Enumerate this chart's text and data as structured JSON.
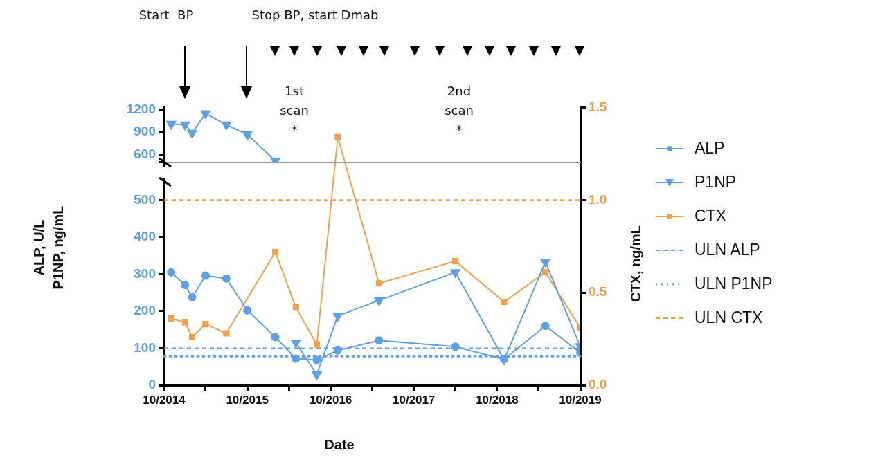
{
  "chart_data": [
    {
      "type": "line",
      "tick_labels": "y",
      "xlim": [
        "2014-10",
        "2019-10"
      ],
      "ylim": [
        500,
        1230
      ],
      "yticks": [
        {
          "value": 500,
          "label": null
        },
        600,
        900,
        1200
      ],
      "series": [
        {
          "color": "#5fa0e0",
          "marker": "triangle",
          "axis": "y",
          "x": [
            "2014-11",
            "2015-01",
            "2015-02",
            "2015-04",
            "2015-07",
            "2015-10",
            "2016-02"
          ],
          "values": [
            1010,
            1000,
            890,
            1150,
            1000,
            870,
            520
          ]
        }
      ]
    },
    {
      "type": "line",
      "xlabel": "Date",
      "ylabel": "ALP, U/L P1NP, ng/mL",
      "y2label": "CTX, ng/mL",
      "legend": "right",
      "xlim": [
        "2014-10",
        "2019-10"
      ],
      "xticks": [
        {
          "value": "2014-10",
          "label": "10/2014"
        },
        {
          "value": "2015-04",
          "label": null
        },
        {
          "value": "2015-10",
          "label": "10/2015"
        },
        {
          "value": "2016-04",
          "label": null
        },
        {
          "value": "2016-10",
          "label": "10/2016"
        },
        {
          "value": "2017-04",
          "label": null
        },
        {
          "value": "2017-10",
          "label": "10/2017"
        },
        {
          "value": "2018-04",
          "label": null
        },
        {
          "value": "2018-10",
          "label": "10/2018"
        },
        {
          "value": "2019-04",
          "label": null
        },
        {
          "value": "2019-10",
          "label": "10/2019"
        }
      ],
      "ylim": [
        0,
        750
      ],
      "yticks": [
        0,
        100,
        200,
        300,
        400,
        500
      ],
      "y2lim": [
        0,
        1.5
      ],
      "y2ticks": [
        {
          "value": 0,
          "label": "0.0"
        },
        {
          "value": 0.5,
          "label": "0.5"
        },
        {
          "value": 1,
          "label": "1.0"
        },
        {
          "value": 1.5,
          "label": "1.5"
        }
      ],
      "series": [
        {
          "name": "ALP",
          "color": "#5fa0e0",
          "marker": "circle",
          "axis": "y",
          "x": [
            "2014-11",
            "2015-01",
            "2015-02",
            "2015-04",
            "2015-07",
            "2015-10",
            "2016-02",
            "2016-05",
            "2016-08",
            "2016-11",
            "2017-05",
            "2018-04",
            "2018-11",
            "2019-05",
            "2019-10"
          ],
          "values": [
            305,
            271,
            237,
            296,
            288,
            202,
            130,
            72,
            68,
            94,
            121,
            104,
            70,
            160,
            88
          ]
        },
        {
          "name": "P1NP",
          "color": "#5fa0e0",
          "marker": "triangle",
          "axis": "y",
          "x": [
            "2016-05",
            "2016-08",
            "2016-11",
            "2017-05",
            "2018-04",
            "2018-11",
            "2019-05",
            "2019-10"
          ],
          "values": [
            115,
            29,
            187,
            229,
            305,
            69,
            333,
            105
          ]
        },
        {
          "name": "CTX",
          "color": "#f0a048",
          "marker": "square",
          "axis": "y2",
          "x": [
            "2014-11",
            "2015-01",
            "2015-02",
            "2015-04",
            "2015-07",
            "2016-02",
            "2016-05",
            "2016-08",
            "2016-11",
            "2017-05",
            "2018-04",
            "2018-11",
            "2019-05",
            "2019-10"
          ],
          "values": [
            0.36,
            0.34,
            0.26,
            0.33,
            0.28,
            0.72,
            0.42,
            0.22,
            1.34,
            0.55,
            0.67,
            0.45,
            0.61,
            0.31
          ]
        }
      ],
      "ref_lines": [
        {
          "axis": "y",
          "value": 100,
          "label": "ULN ALP",
          "color": "#5fa0e0",
          "line_style": "dashed"
        },
        {
          "axis": "y",
          "value": 78,
          "label": "ULN P1NP",
          "color": "#5fa0e0",
          "line_style": "dotted"
        },
        {
          "axis": "y2",
          "value": 1,
          "label": "ULN CTX",
          "color": "#f0a048",
          "line_style": "dashed"
        }
      ],
      "annotations": [
        "Start  BP",
        "Stop BP, start Dmab",
        "1st scan *",
        "2nd scan *"
      ]
    }
  ]
}
